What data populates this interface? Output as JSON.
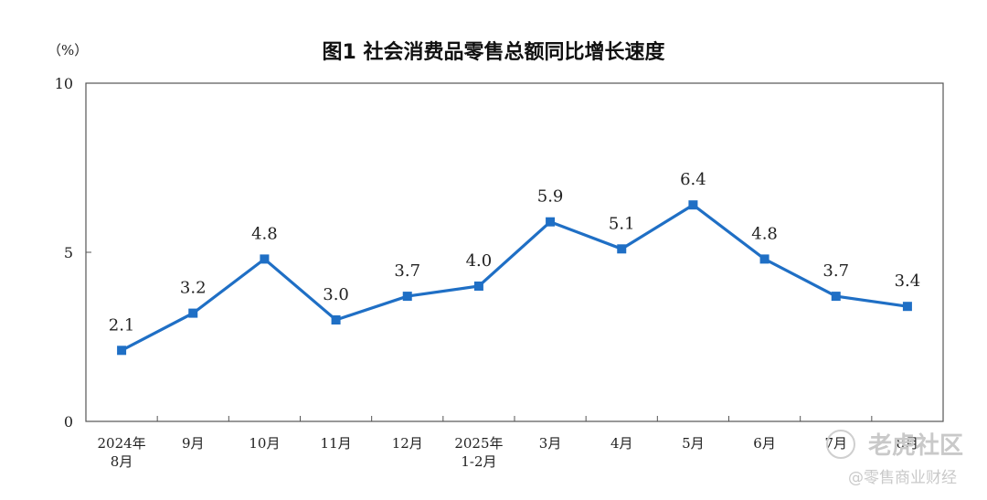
{
  "chart_data": {
    "type": "line",
    "title": "图1  社会消费品零售总额同比增长速度",
    "unit": "（%）",
    "categories": [
      [
        "2024年",
        "8月"
      ],
      [
        "9月"
      ],
      [
        "10月"
      ],
      [
        "11月"
      ],
      [
        "12月"
      ],
      [
        "2025年",
        "1-2月"
      ],
      [
        "3月"
      ],
      [
        "4月"
      ],
      [
        "5月"
      ],
      [
        "6月"
      ],
      [
        "7月"
      ],
      [
        "8月"
      ]
    ],
    "values": [
      2.1,
      3.2,
      4.8,
      3.0,
      3.7,
      4.0,
      5.9,
      5.1,
      6.4,
      4.8,
      3.7,
      3.4
    ],
    "value_labels": [
      "2.1",
      "3.2",
      "4.8",
      "3.0",
      "3.7",
      "4.0",
      "5.9",
      "5.1",
      "6.4",
      "4.8",
      "3.7",
      "3.4"
    ],
    "ylim": [
      0,
      10
    ],
    "yticks": [
      "0",
      "5",
      "10"
    ],
    "line_color": "#1f6fc5",
    "grid": false
  },
  "watermark": {
    "brand": "老虎社区",
    "handle": "@零售商业财经"
  }
}
